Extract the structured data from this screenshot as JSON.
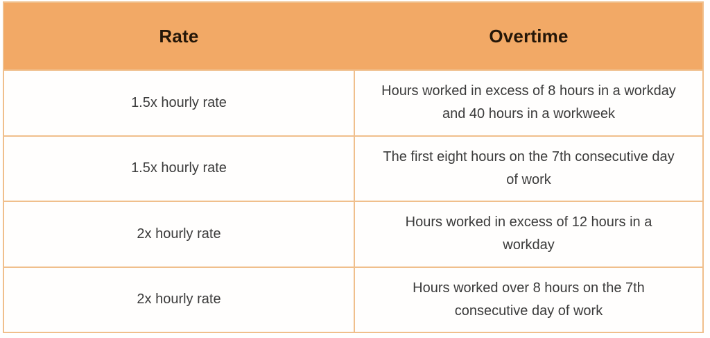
{
  "chart_data": {
    "type": "table",
    "columns": [
      "Rate",
      "Overtime"
    ],
    "rows": [
      {
        "rate": "1.5x hourly rate",
        "overtime": "Hours worked in excess of 8 hours in a workday and 40 hours in a workweek",
        "overtime_lines": [
          "Hours worked in excess of 8 hours in a workday",
          "and 40 hours in a workweek"
        ]
      },
      {
        "rate": "1.5x hourly rate",
        "overtime": "The first eight hours on the 7th consecutive day of work",
        "overtime_lines": [
          "The first eight hours on the 7th consecutive day",
          "of work"
        ]
      },
      {
        "rate": "2x hourly rate",
        "overtime": "Hours worked in excess of 12 hours in a workday",
        "overtime_lines": [
          "Hours worked in excess of 12 hours in a",
          "workday"
        ]
      },
      {
        "rate": "2x hourly rate",
        "overtime": "Hours worked over 8 hours on the 7th consecutive day of work",
        "overtime_lines": [
          "Hours worked over 8 hours on the 7th",
          "consecutive day of work"
        ]
      }
    ]
  },
  "colors": {
    "header_bg": "#F2A966",
    "border": "#F0BF8C",
    "header_text": "#241608",
    "body_text": "#3B3B3B",
    "row_bg": "#FFFEFD"
  }
}
